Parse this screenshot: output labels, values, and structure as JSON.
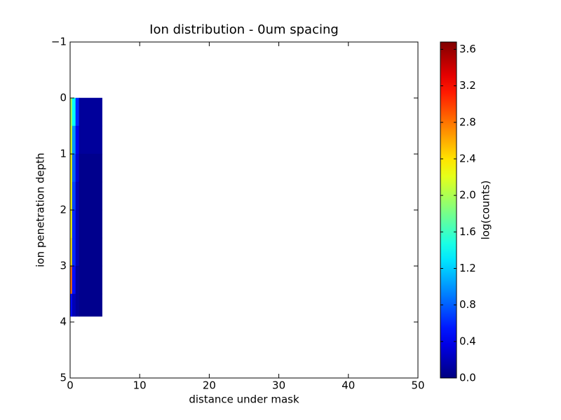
{
  "chart_data": {
    "type": "heatmap",
    "title": "Ion distribution - 0um spacing",
    "x_label": "distance under mask",
    "y_label": "ion penetration depth",
    "colorbar_label": "log(counts)",
    "colormap": "jet",
    "x_edges": [
      0,
      0.3,
      0.8,
      1.3,
      4.6
    ],
    "y_edges": [
      0,
      0.5,
      1,
      1.5,
      2,
      2.5,
      3,
      3.5,
      3.9
    ],
    "values": [
      [
        2.0,
        1.4,
        0.6,
        0.1
      ],
      [
        2.2,
        1.0,
        0.4,
        0.1
      ],
      [
        2.3,
        0.8,
        0.3,
        0.05
      ],
      [
        2.3,
        0.7,
        0.2,
        0.05
      ],
      [
        2.3,
        0.6,
        0.2,
        0.05
      ],
      [
        2.4,
        0.6,
        0.2,
        0.05
      ],
      [
        2.8,
        0.5,
        0.1,
        0.05
      ],
      [
        0.5,
        0.2,
        0.1,
        0.05
      ]
    ],
    "xlim": [
      0,
      50
    ],
    "xticks": [
      0,
      10,
      20,
      30,
      40,
      50
    ],
    "ylim": [
      -1,
      5
    ],
    "y_inverted": true,
    "yticks": [
      {
        "value": -1,
        "label": "−1"
      },
      0,
      1,
      2,
      3,
      4,
      5
    ],
    "clim": [
      0,
      3.68
    ],
    "cticks": [
      {
        "value": 0,
        "label": "0.0"
      },
      0.4,
      0.8,
      1.2,
      1.6,
      {
        "value": 2,
        "label": "2.0"
      },
      2.4,
      2.8,
      3.2,
      3.6
    ]
  }
}
